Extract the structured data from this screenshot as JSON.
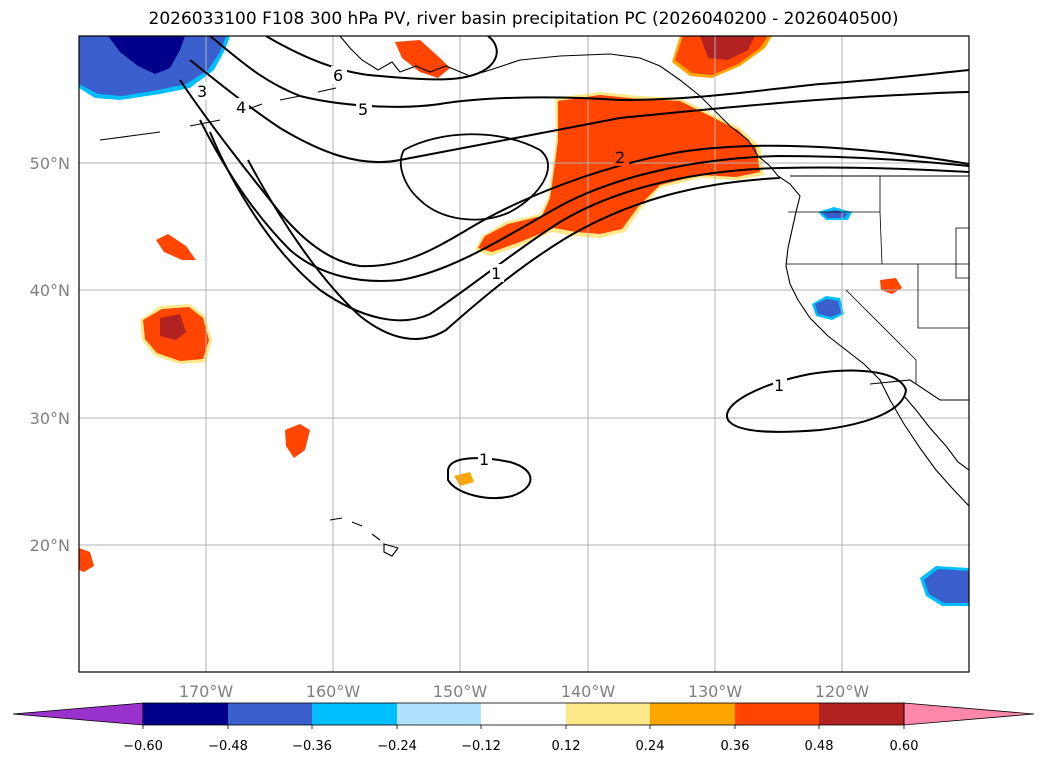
{
  "title": "2026033100 F108 300 hPa PV, river basin precipitation PC (2026040200 - 2026040500)",
  "map": {
    "lon_labels": [
      "170°W",
      "160°W",
      "150°W",
      "140°W",
      "130°W",
      "120°W"
    ],
    "lat_labels": [
      "50°N",
      "40°N",
      "30°N",
      "20°N"
    ],
    "contour_labels": [
      "6",
      "5",
      "4",
      "3",
      "2",
      "1",
      "1",
      "1"
    ]
  },
  "colorbar": {
    "tick_labels": [
      "−0.60",
      "−0.48",
      "−0.36",
      "−0.24",
      "−0.12",
      "0.12",
      "0.24",
      "0.36",
      "0.48",
      "0.60"
    ],
    "colors": [
      "#9932cc",
      "#00008b",
      "#3a5fcd",
      "#00bfff",
      "#b0e2ff",
      "#ffffff",
      "#ffe88a",
      "#ffa500",
      "#ff4500",
      "#b22222",
      "#ff88aa"
    ]
  },
  "colors": {
    "pos_strong": "#b22222",
    "pos_mid": "#ff4500",
    "pos_edge": "#ffa500",
    "pos_faint": "#ffe88a",
    "neg_mid": "#3a5fcd",
    "neg_strong": "#00008b",
    "neg_edge": "#00bfff",
    "grid": "#b0b0b0"
  }
}
